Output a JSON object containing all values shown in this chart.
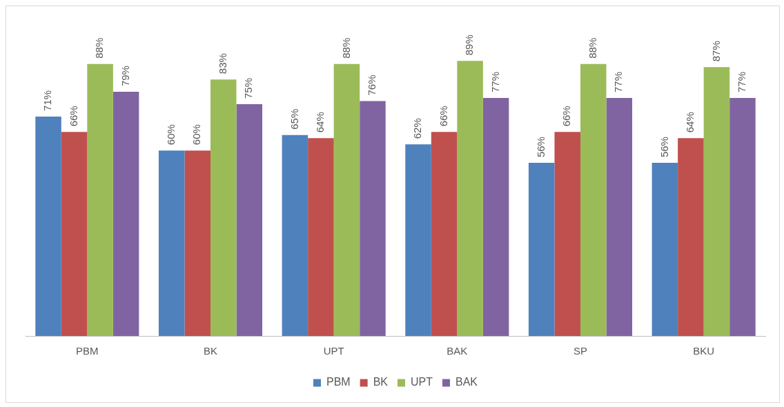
{
  "chart_data": {
    "type": "bar",
    "categories": [
      "PBM",
      "BK",
      "UPT",
      "BAK",
      "SP",
      "BKU"
    ],
    "series": [
      {
        "name": "PBM",
        "color": "#4f81bd",
        "values": [
          71,
          60,
          65,
          62,
          56,
          56
        ],
        "value_labels": [
          "71%",
          "60%",
          "65%",
          "62%",
          "56%",
          "56%"
        ]
      },
      {
        "name": "BK",
        "color": "#c0504d",
        "values": [
          66,
          60,
          64,
          66,
          66,
          64
        ],
        "value_labels": [
          "66%",
          "60%",
          "64%",
          "66%",
          "66%",
          "64%"
        ]
      },
      {
        "name": "UPT",
        "color": "#9bbb59",
        "values": [
          88,
          83,
          88,
          89,
          88,
          87
        ],
        "value_labels": [
          "88%",
          "83%",
          "88%",
          "89%",
          "88%",
          "87%"
        ]
      },
      {
        "name": "BAK",
        "color": "#8064a2",
        "values": [
          79,
          75,
          76,
          77,
          77,
          77
        ],
        "value_labels": [
          "79%",
          "75%",
          "76%",
          "77%",
          "77%",
          "77%"
        ]
      }
    ],
    "legend": "bottom",
    "grid": false,
    "tick_labels": "x"
  }
}
